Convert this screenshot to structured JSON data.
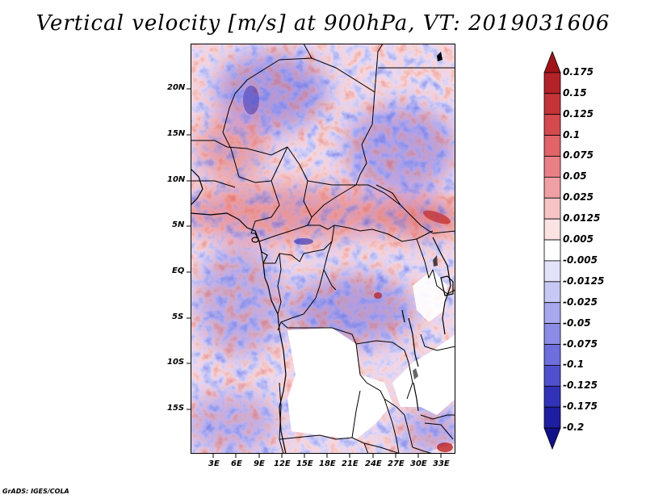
{
  "title": "Vertical velocity [m/s] at 900hPa, VT: 2019031606",
  "footer": "GrADS: IGES/COLA",
  "lat_labels": [
    "20N",
    "15N",
    "10N",
    "5N",
    "EQ",
    "5S",
    "10S",
    "15S"
  ],
  "lon_labels": [
    "3E",
    "6E",
    "9E",
    "12E",
    "15E",
    "18E",
    "21E",
    "24E",
    "27E",
    "30E",
    "33E"
  ],
  "colorbar": {
    "labels": [
      "0.175",
      "0.15",
      "0.125",
      "0.1",
      "0.075",
      "0.05",
      "0.025",
      "0.0125",
      "0.005",
      "-0.005",
      "-0.0125",
      "-0.025",
      "-0.05",
      "-0.075",
      "-0.1",
      "-0.125",
      "-0.175",
      "-0.2"
    ],
    "colors": [
      "#a01418",
      "#b22228",
      "#c43438",
      "#d44a4e",
      "#e06468",
      "#e88086",
      "#f0a0a4",
      "#f7c4c6",
      "#fbe2e3",
      "#ffffff",
      "#e2e2f9",
      "#c8c8f4",
      "#a8a8ee",
      "#8c8ce6",
      "#6e6edc",
      "#5050cc",
      "#3232b8",
      "#1e1ea0",
      "#10108a"
    ]
  },
  "colors": {
    "positive": "#e04040",
    "negative": "#4040e0",
    "coastline": "#000000"
  }
}
